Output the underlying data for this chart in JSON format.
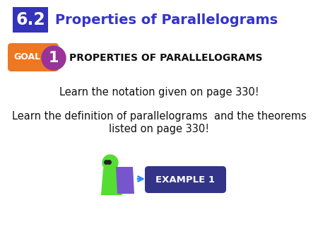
{
  "bg_color": "#ffffff",
  "title_box_color": "#3333bb",
  "title_box_text": "6.2",
  "title_box_text_color": "#ffffff",
  "title_text": "Properties of Parallelograms",
  "title_text_color": "#3333cc",
  "goal_pill_color": "#ee7722",
  "goal_text": "GOAL",
  "goal_text_color": "#ffffff",
  "number_circle_color": "#993399",
  "number_text": "1",
  "number_text_color": "#ffffff",
  "goal_heading": "PROPERTIES OF PARALLELOGRAMS",
  "goal_heading_color": "#111111",
  "body_line1": "Learn the notation given on page 330!",
  "body_line2a": "Learn the definition of parallelograms  and the theorems",
  "body_line2b": "listed on page 330!",
  "body_text_color": "#111111",
  "example_box_color": "#333388",
  "example_text": "EXAMPLE 1",
  "example_text_color": "#ffffff",
  "person_green": "#55dd33",
  "person_purple": "#7755cc",
  "arrow_color": "#3388ff"
}
